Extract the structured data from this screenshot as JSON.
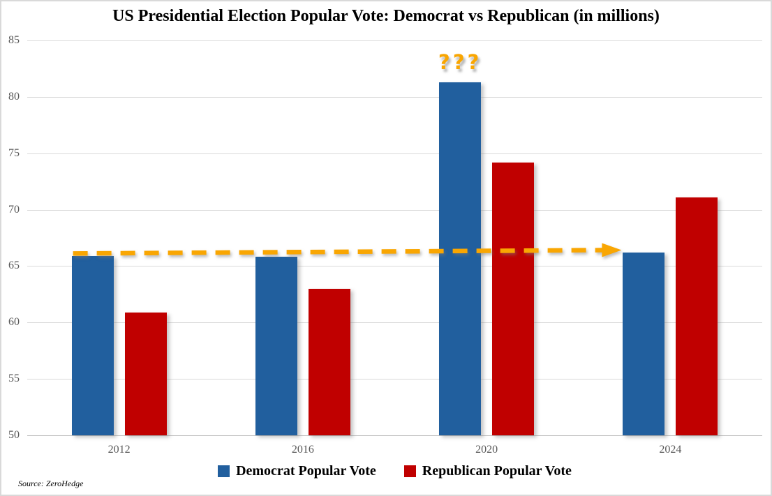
{
  "title": "US Presidential Election Popular Vote: Democrat vs Republican (in millions)",
  "source_note": "Source: ZeroHedge",
  "annotation_text": "???",
  "legend": {
    "democrat": "Democrat Popular Vote",
    "republican": "Republican Popular Vote"
  },
  "colors": {
    "democrat_blue": "#215F9E",
    "republican_red": "#C00000",
    "annotation_orange": "#F9A602",
    "gridline": "#D9D9D9",
    "axis_line": "#BFBFBF",
    "tick_label_gray": "#595959"
  },
  "chart_data": {
    "type": "bar",
    "title": "US Presidential Election Popular Vote: Democrat vs Republican (in millions)",
    "categories": [
      "2012",
      "2016",
      "2020",
      "2024"
    ],
    "series": [
      {
        "name": "Democrat Popular Vote",
        "color": "#215F9E",
        "values": [
          65.9,
          65.8,
          81.3,
          66.2
        ]
      },
      {
        "name": "Republican Popular Vote",
        "color": "#C00000",
        "values": [
          60.9,
          63.0,
          74.2,
          71.1
        ]
      }
    ],
    "xlabel": "",
    "ylabel": "",
    "ylim": [
      50,
      85
    ],
    "yticks": [
      50,
      55,
      60,
      65,
      70,
      75,
      80,
      85
    ],
    "grid": true,
    "legend_position": "bottom",
    "annotations": [
      {
        "type": "text",
        "text": "???",
        "color": "#F9A602",
        "position": "above 2020 Democrat bar"
      },
      {
        "type": "arrow",
        "style": "dashed",
        "color": "#F9A602",
        "from": {
          "category": "2012",
          "series": "Democrat Popular Vote",
          "value": 65.9
        },
        "to": {
          "category": "2024",
          "series": "Democrat Popular Vote",
          "value": 66.2
        },
        "note": "horizontal dashed arrow showing Democrat vote level 2012 vs 2024"
      }
    ]
  }
}
